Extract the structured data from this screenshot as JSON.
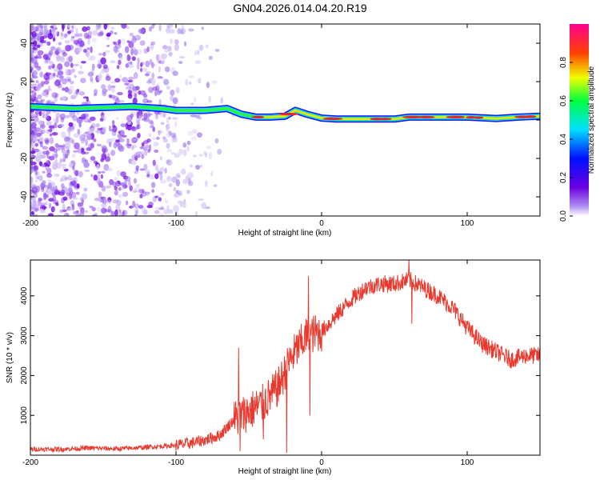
{
  "title": "GN04.2026.014.04.20.R19",
  "chart_data": [
    {
      "type": "heatmap",
      "name": "spectrogram",
      "xlabel": "Height of straight line (km)",
      "ylabel": "Frequency (Hz)",
      "xlim": [
        -200,
        150
      ],
      "ylim": [
        -50,
        50
      ],
      "xticks": [
        -200,
        -100,
        0,
        100
      ],
      "yticks": [
        -40,
        -20,
        0,
        20,
        40
      ],
      "tick_labels": {
        "x": [
          "-200",
          "-100",
          "0",
          "100"
        ],
        "y": [
          "-40",
          "-20",
          "0",
          "20",
          "40"
        ]
      },
      "colorbar": {
        "label": "Normalized spectral amplitude",
        "range": [
          0,
          1
        ],
        "ticks": [
          0.0,
          0.2,
          0.4,
          0.6,
          0.8
        ],
        "tick_labels": [
          "0.0",
          "0.2",
          "0.4",
          "0.6",
          "0.8"
        ]
      },
      "ridge": {
        "description": "dominant frequency line",
        "x": [
          -200,
          -170,
          -130,
          -110,
          -100,
          -80,
          -65,
          -55,
          -45,
          -35,
          -25,
          -18,
          -10,
          0,
          10,
          30,
          50,
          60,
          80,
          100,
          120,
          135,
          150
        ],
        "y": [
          7,
          6,
          7,
          6,
          5,
          5,
          6,
          3,
          1.5,
          1.5,
          2,
          5,
          3,
          1,
          0.5,
          0.5,
          0.5,
          1.5,
          1.5,
          1.5,
          0.8,
          1.5,
          2
        ],
        "peak_amplitude_x": [
          -50,
          150
        ]
      }
    },
    {
      "type": "line",
      "name": "snr",
      "xlabel": "Height of straight line (km)",
      "ylabel": "SNR (10 * v/v)",
      "xlim": [
        -200,
        150
      ],
      "ylim": [
        0,
        4900
      ],
      "xticks": [
        -200,
        -100,
        0,
        100
      ],
      "yticks": [
        1000,
        2000,
        3000,
        4000
      ],
      "tick_labels": {
        "x": [
          "-200",
          "-100",
          "0",
          "100"
        ],
        "y": [
          "1000",
          "2000",
          "3000",
          "4000"
        ]
      },
      "color": "#e8392e",
      "x": [
        -200,
        -180,
        -160,
        -140,
        -120,
        -100,
        -90,
        -80,
        -70,
        -60,
        -50,
        -40,
        -30,
        -20,
        -10,
        0,
        10,
        20,
        30,
        40,
        50,
        60,
        70,
        80,
        90,
        100,
        110,
        120,
        130,
        140,
        150
      ],
      "y": [
        150,
        150,
        180,
        160,
        200,
        250,
        300,
        380,
        500,
        900,
        1100,
        1300,
        1700,
        2500,
        3000,
        3100,
        3500,
        3900,
        4200,
        4300,
        4300,
        4400,
        4200,
        4000,
        3700,
        3200,
        2800,
        2600,
        2400,
        2500,
        2500
      ],
      "spikes": [
        {
          "x": -57,
          "y": 2700
        },
        {
          "x": -56,
          "y": 100
        },
        {
          "x": -40,
          "y": 400
        },
        {
          "x": -23,
          "y": 2600
        },
        {
          "x": -24,
          "y": 50
        },
        {
          "x": -9,
          "y": 4500
        },
        {
          "x": -8,
          "y": 1000
        },
        {
          "x": 0,
          "y": 2600
        },
        {
          "x": 60,
          "y": 4900
        },
        {
          "x": 62,
          "y": 3300
        }
      ]
    }
  ]
}
